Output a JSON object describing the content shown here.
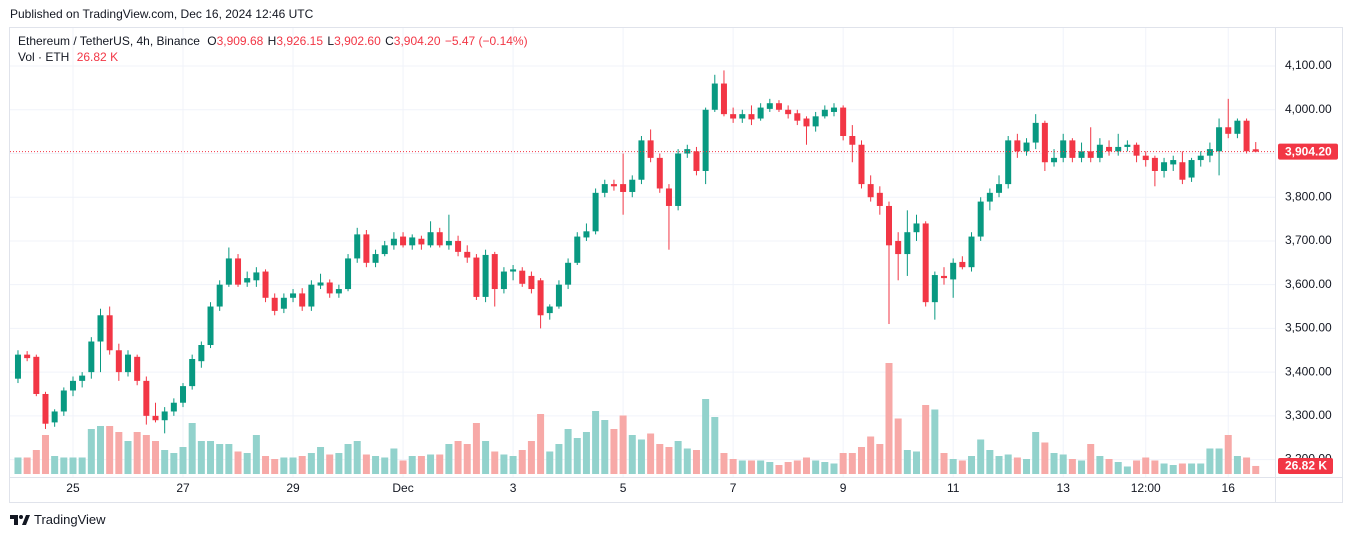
{
  "published": "Published on TradingView.com, Dec 16, 2024 12:46 UTC",
  "brand": "TradingView",
  "chart_data": {
    "type": "candlestick",
    "legend": {
      "symbol": "Ethereum / TetherUS, 4h, Binance",
      "fields": [
        {
          "key": "O",
          "value": "3,909.68"
        },
        {
          "key": "H",
          "value": "3,926.15"
        },
        {
          "key": "L",
          "value": "3,902.60"
        },
        {
          "key": "C",
          "value": "3,904.20"
        }
      ],
      "change": "−5.47 (−0.14%)",
      "volume_name": "Vol · ETH",
      "volume_value": "26.82 K"
    },
    "up_color": "#089981",
    "down_color": "#f23645",
    "up_volume_color": "#92d2cc",
    "down_volume_color": "#f7a9a7",
    "ylim": [
      3167,
      4187
    ],
    "yticks": [
      {
        "value": 3200,
        "label": "3,200.00"
      },
      {
        "value": 3300,
        "label": "3,300.00"
      },
      {
        "value": 3400,
        "label": "3,400.00"
      },
      {
        "value": 3500,
        "label": "3,500.00"
      },
      {
        "value": 3600,
        "label": "3,600.00"
      },
      {
        "value": 3700,
        "label": "3,700.00"
      },
      {
        "value": 3800,
        "label": "3,800.00"
      },
      {
        "value": 3900,
        "label": "3,900.00"
      },
      {
        "value": 4000,
        "label": "4,000.00"
      },
      {
        "value": 4100,
        "label": "4,100.00"
      }
    ],
    "xlim": [
      -0.87,
      137.1
    ],
    "xticks": [
      {
        "value": 6,
        "label": "25"
      },
      {
        "value": 18,
        "label": "27"
      },
      {
        "value": 30,
        "label": "29"
      },
      {
        "value": 42,
        "label": "Dec"
      },
      {
        "value": 54,
        "label": "3"
      },
      {
        "value": 66,
        "label": "5"
      },
      {
        "value": 78,
        "label": "7"
      },
      {
        "value": 90,
        "label": "9"
      },
      {
        "value": 102,
        "label": "11"
      },
      {
        "value": 114,
        "label": "13"
      },
      {
        "value": 123,
        "label": "12:00"
      },
      {
        "value": 132,
        "label": "16"
      }
    ],
    "ohlc": [
      [
        3385,
        3450,
        3375,
        3440
      ],
      [
        3440,
        3448,
        3425,
        3432
      ],
      [
        3435,
        3440,
        3345,
        3350
      ],
      [
        3350,
        3355,
        3270,
        3282
      ],
      [
        3285,
        3315,
        3275,
        3310
      ],
      [
        3310,
        3365,
        3300,
        3358
      ],
      [
        3358,
        3390,
        3345,
        3380
      ],
      [
        3380,
        3400,
        3365,
        3392
      ],
      [
        3400,
        3480,
        3385,
        3470
      ],
      [
        3470,
        3545,
        3400,
        3530
      ],
      [
        3530,
        3550,
        3440,
        3450
      ],
      [
        3450,
        3465,
        3380,
        3400
      ],
      [
        3400,
        3450,
        3390,
        3440
      ],
      [
        3435,
        3440,
        3370,
        3380
      ],
      [
        3380,
        3390,
        3280,
        3300
      ],
      [
        3300,
        3330,
        3285,
        3290
      ],
      [
        3290,
        3320,
        3260,
        3310
      ],
      [
        3310,
        3340,
        3300,
        3330
      ],
      [
        3330,
        3375,
        3320,
        3368
      ],
      [
        3368,
        3440,
        3360,
        3430
      ],
      [
        3425,
        3470,
        3410,
        3462
      ],
      [
        3462,
        3560,
        3455,
        3550
      ],
      [
        3550,
        3610,
        3540,
        3600
      ],
      [
        3600,
        3685,
        3595,
        3660
      ],
      [
        3660,
        3670,
        3595,
        3600
      ],
      [
        3605,
        3630,
        3595,
        3615
      ],
      [
        3610,
        3640,
        3595,
        3628
      ],
      [
        3630,
        3635,
        3560,
        3570
      ],
      [
        3570,
        3580,
        3530,
        3540
      ],
      [
        3545,
        3580,
        3535,
        3570
      ],
      [
        3570,
        3590,
        3560,
        3580
      ],
      [
        3580,
        3592,
        3540,
        3550
      ],
      [
        3550,
        3610,
        3540,
        3600
      ],
      [
        3598,
        3625,
        3590,
        3605
      ],
      [
        3605,
        3612,
        3570,
        3580
      ],
      [
        3580,
        3600,
        3570,
        3590
      ],
      [
        3590,
        3670,
        3585,
        3660
      ],
      [
        3660,
        3730,
        3650,
        3715
      ],
      [
        3715,
        3725,
        3640,
        3650
      ],
      [
        3650,
        3680,
        3640,
        3670
      ],
      [
        3670,
        3700,
        3665,
        3690
      ],
      [
        3690,
        3720,
        3680,
        3705
      ],
      [
        3710,
        3720,
        3685,
        3690
      ],
      [
        3690,
        3715,
        3680,
        3708
      ],
      [
        3705,
        3712,
        3680,
        3692
      ],
      [
        3690,
        3745,
        3685,
        3720
      ],
      [
        3720,
        3730,
        3685,
        3690
      ],
      [
        3690,
        3760,
        3680,
        3700
      ],
      [
        3700,
        3712,
        3665,
        3675
      ],
      [
        3675,
        3690,
        3650,
        3662
      ],
      [
        3662,
        3670,
        3565,
        3572
      ],
      [
        3572,
        3680,
        3560,
        3668
      ],
      [
        3670,
        3675,
        3550,
        3590
      ],
      [
        3590,
        3640,
        3580,
        3630
      ],
      [
        3630,
        3645,
        3610,
        3635
      ],
      [
        3632,
        3640,
        3595,
        3602
      ],
      [
        3620,
        3630,
        3580,
        3590
      ],
      [
        3610,
        3615,
        3500,
        3530
      ],
      [
        3535,
        3555,
        3520,
        3550
      ],
      [
        3550,
        3610,
        3545,
        3600
      ],
      [
        3600,
        3660,
        3590,
        3650
      ],
      [
        3650,
        3720,
        3645,
        3710
      ],
      [
        3708,
        3740,
        3700,
        3722
      ],
      [
        3722,
        3820,
        3715,
        3810
      ],
      [
        3810,
        3840,
        3800,
        3830
      ],
      [
        3830,
        3840,
        3815,
        3825
      ],
      [
        3830,
        3900,
        3760,
        3812
      ],
      [
        3812,
        3850,
        3800,
        3840
      ],
      [
        3840,
        3940,
        3830,
        3930
      ],
      [
        3930,
        3955,
        3880,
        3890
      ],
      [
        3890,
        3900,
        3810,
        3820
      ],
      [
        3820,
        3830,
        3680,
        3780
      ],
      [
        3780,
        3910,
        3770,
        3900
      ],
      [
        3900,
        3920,
        3890,
        3910
      ],
      [
        3905,
        3915,
        3850,
        3860
      ],
      [
        3860,
        4005,
        3830,
        4000
      ],
      [
        4000,
        4080,
        3995,
        4060
      ],
      [
        4060,
        4090,
        3985,
        3990
      ],
      [
        3990,
        4005,
        3970,
        3980
      ],
      [
        3980,
        4000,
        3970,
        3990
      ],
      [
        3990,
        4010,
        3965,
        3978
      ],
      [
        3980,
        4015,
        3975,
        4005
      ],
      [
        4002,
        4025,
        3995,
        4015
      ],
      [
        4015,
        4022,
        3995,
        4000
      ],
      [
        4000,
        4010,
        3980,
        3990
      ],
      [
        3992,
        4000,
        3965,
        3975
      ],
      [
        3980,
        3985,
        3920,
        3962
      ],
      [
        3962,
        3995,
        3950,
        3985
      ],
      [
        3985,
        4010,
        3980,
        4000
      ],
      [
        3995,
        4015,
        3985,
        4005
      ],
      [
        4005,
        4010,
        3930,
        3940
      ],
      [
        3940,
        3965,
        3880,
        3920
      ],
      [
        3920,
        3930,
        3820,
        3830
      ],
      [
        3830,
        3850,
        3790,
        3800
      ],
      [
        3810,
        3825,
        3760,
        3780
      ],
      [
        3780,
        3790,
        3510,
        3690
      ],
      [
        3700,
        3720,
        3610,
        3670
      ],
      [
        3670,
        3770,
        3620,
        3720
      ],
      [
        3720,
        3760,
        3700,
        3740
      ],
      [
        3740,
        3745,
        3550,
        3560
      ],
      [
        3560,
        3630,
        3520,
        3622
      ],
      [
        3620,
        3640,
        3600,
        3615
      ],
      [
        3612,
        3660,
        3570,
        3650
      ],
      [
        3652,
        3665,
        3635,
        3640
      ],
      [
        3640,
        3720,
        3630,
        3710
      ],
      [
        3710,
        3800,
        3700,
        3790
      ],
      [
        3790,
        3820,
        3770,
        3810
      ],
      [
        3810,
        3850,
        3800,
        3830
      ],
      [
        3830,
        3940,
        3820,
        3930
      ],
      [
        3930,
        3945,
        3890,
        3905
      ],
      [
        3905,
        3935,
        3895,
        3925
      ],
      [
        3925,
        3990,
        3910,
        3970
      ],
      [
        3970,
        3975,
        3860,
        3880
      ],
      [
        3880,
        3910,
        3870,
        3890
      ],
      [
        3890,
        3945,
        3880,
        3930
      ],
      [
        3930,
        3935,
        3880,
        3890
      ],
      [
        3890,
        3925,
        3880,
        3905
      ],
      [
        3905,
        3960,
        3880,
        3890
      ],
      [
        3890,
        3935,
        3880,
        3920
      ],
      [
        3915,
        3930,
        3895,
        3905
      ],
      [
        3905,
        3945,
        3895,
        3915
      ],
      [
        3915,
        3930,
        3905,
        3920
      ],
      [
        3920,
        3925,
        3880,
        3895
      ],
      [
        3895,
        3905,
        3870,
        3885
      ],
      [
        3890,
        3895,
        3825,
        3860
      ],
      [
        3860,
        3890,
        3845,
        3880
      ],
      [
        3875,
        3895,
        3860,
        3885
      ],
      [
        3880,
        3905,
        3830,
        3840
      ],
      [
        3845,
        3890,
        3835,
        3885
      ],
      [
        3885,
        3905,
        3870,
        3895
      ],
      [
        3895,
        3925,
        3880,
        3910
      ],
      [
        3905,
        3980,
        3850,
        3960
      ],
      [
        3960,
        4025,
        3935,
        3945
      ],
      [
        3945,
        3980,
        3935,
        3975
      ],
      [
        3975,
        3980,
        3900,
        3905
      ],
      [
        3909.68,
        3926.15,
        3902.6,
        3904.2
      ]
    ],
    "volume": [
      55,
      55,
      80,
      130,
      60,
      55,
      55,
      55,
      150,
      160,
      160,
      140,
      110,
      140,
      130,
      110,
      80,
      70,
      90,
      170,
      110,
      110,
      100,
      100,
      75,
      70,
      130,
      60,
      50,
      55,
      55,
      60,
      70,
      90,
      65,
      70,
      100,
      110,
      65,
      60,
      55,
      85,
      45,
      60,
      60,
      65,
      65,
      100,
      110,
      100,
      170,
      110,
      75,
      65,
      60,
      80,
      110,
      200,
      75,
      100,
      150,
      120,
      140,
      210,
      180,
      150,
      195,
      130,
      115,
      135,
      100,
      90,
      110,
      85,
      80,
      250,
      190,
      70,
      50,
      45,
      45,
      45,
      40,
      30,
      40,
      45,
      55,
      45,
      40,
      35,
      70,
      70,
      90,
      125,
      100,
      370,
      185,
      80,
      75,
      230,
      215,
      70,
      50,
      45,
      60,
      115,
      80,
      60,
      65,
      55,
      50,
      140,
      105,
      70,
      65,
      50,
      45,
      100,
      60,
      50,
      40,
      25,
      45,
      55,
      45,
      35,
      30,
      35,
      35,
      35,
      85,
      85,
      130,
      60,
      55,
      26.82
    ]
  }
}
